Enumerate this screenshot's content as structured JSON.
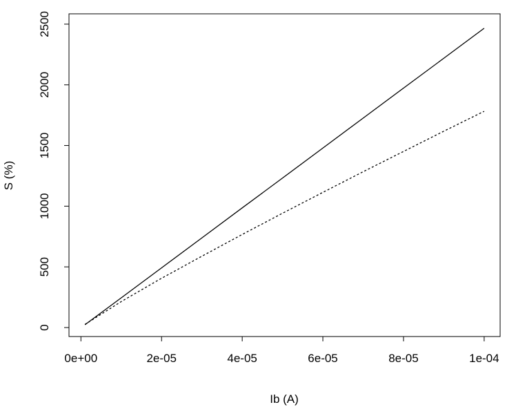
{
  "chart_data": {
    "type": "line",
    "x_label": "Ib (A)",
    "y_label": "S (%)",
    "x": [
      1e-06,
      1e-05,
      2e-05,
      3e-05,
      4e-05,
      5e-05,
      6e-05,
      7e-05,
      8e-05,
      9e-05,
      0.0001
    ],
    "series": [
      {
        "color": "#000000",
        "line_style": "solid",
        "values": [
          23,
          245,
          492,
          739,
          986,
          1232,
          1479,
          1726,
          1973,
          2219,
          2466
        ]
      },
      {
        "color": "#000000",
        "line_style": "dotted",
        "values": [
          26,
          214,
          406,
          588,
          767,
          942,
          1114,
          1284,
          1451,
          1618,
          1782
        ]
      }
    ],
    "xlim": [
      -2.96e-06,
      0.00010396
    ],
    "ylim": [
      -74,
      2585
    ],
    "xticks": [
      {
        "value": 0,
        "label": "0e+00"
      },
      {
        "value": 2e-05,
        "label": "2e-05"
      },
      {
        "value": 4e-05,
        "label": "4e-05"
      },
      {
        "value": 6e-05,
        "label": "6e-05"
      },
      {
        "value": 8e-05,
        "label": "8e-05"
      },
      {
        "value": 0.0001,
        "label": "1e-04"
      }
    ],
    "yticks": [
      0,
      500,
      1000,
      1500,
      2000,
      2500
    ]
  }
}
